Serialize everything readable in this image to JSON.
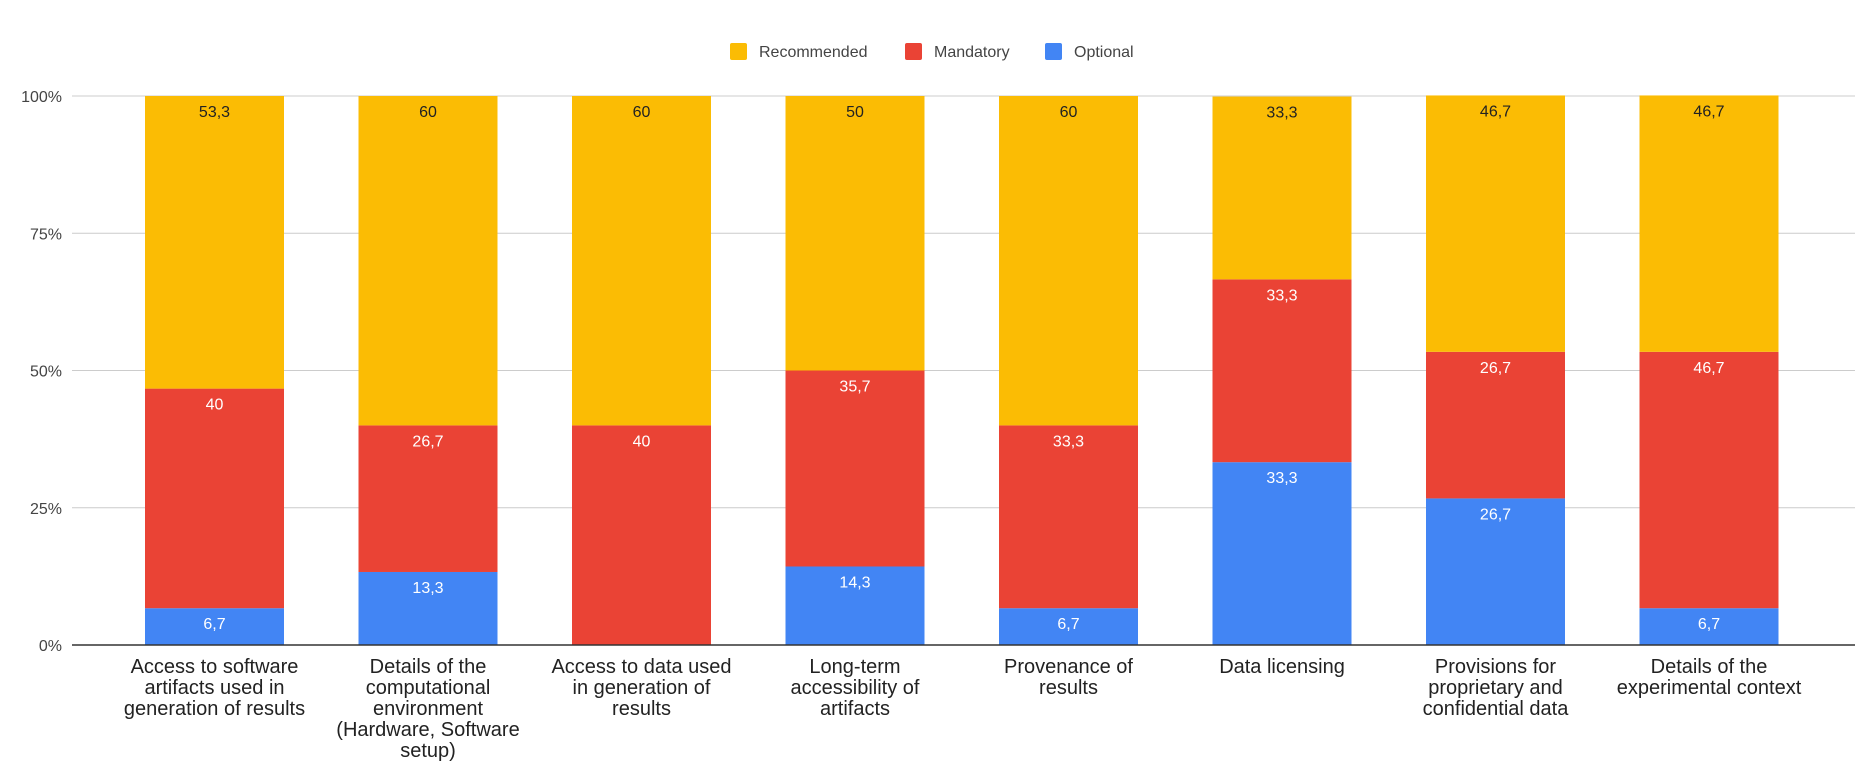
{
  "chart_data": {
    "type": "bar",
    "stacked": true,
    "percent_stacked": true,
    "title": "",
    "xlabel": "",
    "ylabel": "",
    "ylim": [
      0,
      100
    ],
    "yticks": [
      0,
      25,
      50,
      75,
      100
    ],
    "ytick_labels": [
      "0%",
      "25%",
      "50%",
      "75%",
      "100%"
    ],
    "grid": true,
    "legend_position": "top",
    "categories": [
      [
        "Access to software",
        "artifacts used in",
        "generation of results"
      ],
      [
        "Details of the",
        "computational",
        "environment",
        "(Hardware, Software",
        "setup)"
      ],
      [
        "Access to data used",
        "in generation of",
        "results"
      ],
      [
        "Long-term",
        "accessibility of",
        "artifacts"
      ],
      [
        "Provenance of",
        "results"
      ],
      [
        "Data licensing"
      ],
      [
        "Provisions for",
        "proprietary and",
        "confidential data"
      ],
      [
        "Details of the",
        "experimental context"
      ]
    ],
    "series": [
      {
        "name": "Optional",
        "color": "#4285F4",
        "values": [
          6.7,
          13.3,
          0,
          14.3,
          6.7,
          33.3,
          26.7,
          6.7
        ],
        "labels": [
          "6,7",
          "13,3",
          "0",
          "14,3",
          "6,7",
          "33,3",
          "26,7",
          "6,7"
        ]
      },
      {
        "name": "Mandatory",
        "color": "#EA4335",
        "values": [
          40,
          26.7,
          40,
          35.7,
          33.3,
          33.3,
          26.7,
          46.7
        ],
        "labels": [
          "40",
          "26,7",
          "40",
          "35,7",
          "33,3",
          "33,3",
          "26,7",
          "46,7"
        ]
      },
      {
        "name": "Recommended",
        "color": "#FBBC04",
        "values": [
          53.3,
          60,
          60,
          50,
          60,
          33.3,
          46.7,
          46.7
        ],
        "labels": [
          "53,3",
          "60",
          "60",
          "50",
          "60",
          "33,3",
          "46,7",
          "46,7"
        ]
      }
    ],
    "legend_order": [
      "Recommended",
      "Mandatory",
      "Optional"
    ]
  }
}
